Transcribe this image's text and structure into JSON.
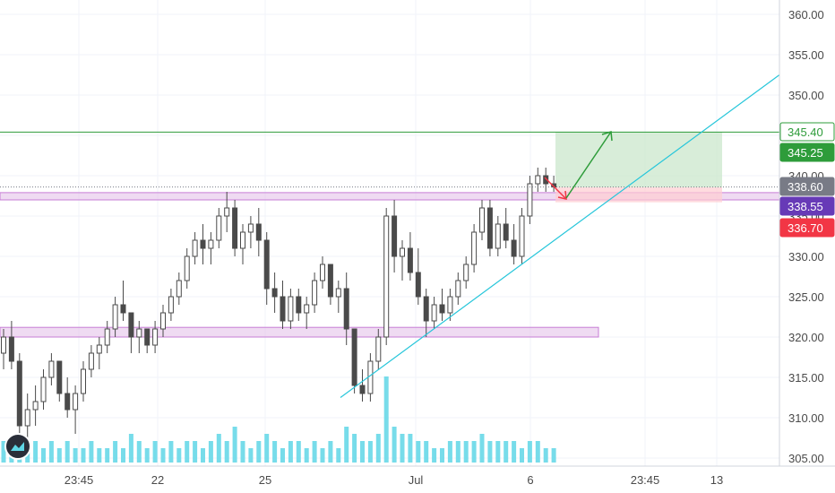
{
  "chart_data": {
    "type": "candlestick",
    "y_axis": {
      "range": [
        304,
        362
      ],
      "ticks": [
        "360.00",
        "355.00",
        "350.00",
        "345.00",
        "340.00",
        "335.00",
        "330.00",
        "325.00",
        "320.00",
        "315.00",
        "310.00",
        "305.00"
      ],
      "tick_values": [
        360,
        355,
        350,
        345,
        340,
        335,
        330,
        325,
        320,
        315,
        310,
        305
      ]
    },
    "x_axis": {
      "ticks": [
        "23:45",
        "22",
        "25",
        "Jul",
        "6",
        "23:45",
        "13"
      ]
    },
    "price_badges": [
      {
        "label": "345.40",
        "value": 345.4,
        "color": "#2e9c3a",
        "style": "outline"
      },
      {
        "label": "345.25",
        "value": 345.25,
        "color": "#2e9c3a",
        "style": "solid"
      },
      {
        "label": "338.60",
        "value": 338.6,
        "color": "#787b86",
        "style": "solid"
      },
      {
        "label": "338.55",
        "value": 338.55,
        "color": "#673ab7",
        "style": "solid"
      },
      {
        "label": "336.70",
        "value": 336.7,
        "color": "#f23645",
        "style": "solid"
      }
    ],
    "horizontal_lines": [
      {
        "name": "target",
        "value": 345.4,
        "color": "#2e9c3a"
      },
      {
        "name": "current",
        "value": 338.6,
        "color": "#787b86"
      }
    ],
    "zones": [
      {
        "name": "upper-support",
        "low": 337.0,
        "high": 337.9,
        "color": "#e1bee7"
      },
      {
        "name": "lower-support",
        "low": 320.0,
        "high": 321.2,
        "color": "#e1bee7"
      }
    ],
    "trendline": {
      "from": [
        0,
        312.5
      ],
      "to": [
        1,
        352.5
      ],
      "color": "#26c6da"
    },
    "position": {
      "entry": 338.55,
      "target": 345.4,
      "stop": 336.7
    },
    "colors": {
      "up": "#ffffff",
      "down": "#4a4a4a",
      "volume": "#5fd6e6",
      "grid": "#f0f3fa"
    },
    "candles": [
      [
        318,
        321,
        316,
        320
      ],
      [
        320,
        322,
        316,
        317
      ],
      [
        317,
        318,
        306,
        309
      ],
      [
        309,
        313,
        307,
        311
      ],
      [
        311,
        314,
        309,
        312
      ],
      [
        312,
        316,
        311,
        315
      ],
      [
        315,
        318,
        314,
        317
      ],
      [
        317,
        317,
        312,
        313
      ],
      [
        313,
        315,
        310,
        311
      ],
      [
        311,
        314,
        308,
        313
      ],
      [
        313,
        317,
        312,
        316
      ],
      [
        316,
        319,
        315,
        318
      ],
      [
        318,
        320,
        316,
        319
      ],
      [
        319,
        322,
        318,
        321
      ],
      [
        321,
        325,
        320,
        324
      ],
      [
        324,
        327,
        322,
        323
      ],
      [
        323,
        323,
        318,
        320
      ],
      [
        320,
        322,
        318,
        321
      ],
      [
        321,
        321,
        318,
        319
      ],
      [
        319,
        322,
        318,
        321
      ],
      [
        321,
        324,
        320,
        323
      ],
      [
        323,
        326,
        322,
        325
      ],
      [
        325,
        328,
        324,
        327
      ],
      [
        327,
        331,
        326,
        330
      ],
      [
        330,
        333,
        329,
        332
      ],
      [
        332,
        334,
        329,
        331
      ],
      [
        331,
        333,
        329,
        332
      ],
      [
        332,
        336,
        331,
        335
      ],
      [
        335,
        338,
        333,
        336
      ],
      [
        336,
        337,
        330,
        331
      ],
      [
        331,
        334,
        329,
        333
      ],
      [
        333,
        335,
        331,
        334
      ],
      [
        334,
        336,
        330,
        332
      ],
      [
        332,
        333,
        324,
        326
      ],
      [
        326,
        328,
        323,
        325
      ],
      [
        325,
        327,
        321,
        322
      ],
      [
        322,
        326,
        321,
        325
      ],
      [
        325,
        326,
        322,
        323
      ],
      [
        323,
        325,
        321,
        324
      ],
      [
        324,
        328,
        323,
        327
      ],
      [
        327,
        330,
        326,
        329
      ],
      [
        329,
        329,
        324,
        325
      ],
      [
        325,
        327,
        323,
        326
      ],
      [
        326,
        328,
        319,
        321
      ],
      [
        321,
        321,
        313,
        314
      ],
      [
        314,
        316,
        312,
        313
      ],
      [
        313,
        318,
        312,
        317
      ],
      [
        317,
        321,
        316,
        320
      ],
      [
        320,
        336,
        319,
        335
      ],
      [
        335,
        337,
        328,
        330
      ],
      [
        330,
        332,
        327,
        331
      ],
      [
        331,
        333,
        327,
        328
      ],
      [
        328,
        331,
        324,
        325
      ],
      [
        325,
        326,
        320,
        322
      ],
      [
        322,
        325,
        321,
        324
      ],
      [
        324,
        326,
        322,
        323
      ],
      [
        323,
        326,
        322,
        325
      ],
      [
        325,
        328,
        324,
        327
      ],
      [
        327,
        330,
        326,
        329
      ],
      [
        329,
        334,
        328,
        333
      ],
      [
        333,
        337,
        332,
        336
      ],
      [
        336,
        337,
        330,
        331
      ],
      [
        331,
        335,
        330,
        334
      ],
      [
        334,
        336,
        331,
        332
      ],
      [
        332,
        334,
        329,
        330
      ],
      [
        330,
        336,
        329,
        335
      ],
      [
        335,
        340,
        334,
        339
      ],
      [
        339,
        341,
        338,
        340
      ],
      [
        340,
        341,
        338,
        339
      ],
      [
        339,
        340,
        338,
        338.6
      ]
    ],
    "volumes": [
      3,
      2,
      4,
      2,
      3,
      2,
      3,
      2,
      3,
      2,
      2,
      3,
      2,
      2,
      3,
      2,
      4,
      3,
      2,
      3,
      2,
      3,
      2,
      3,
      3,
      2,
      3,
      4,
      3,
      5,
      3,
      2,
      3,
      4,
      3,
      2,
      3,
      3,
      2,
      3,
      2,
      3,
      2,
      5,
      4,
      3,
      3,
      4,
      12,
      5,
      4,
      4,
      3,
      3,
      2,
      2,
      3,
      3,
      3,
      3,
      4,
      3,
      3,
      3,
      3,
      2,
      3,
      3,
      2,
      2
    ]
  }
}
